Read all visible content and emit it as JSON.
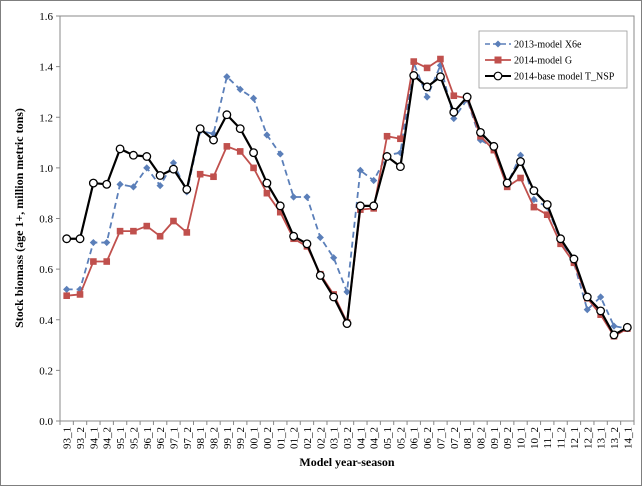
{
  "chart_data": {
    "type": "line",
    "title": "",
    "xlabel": "Model year-season",
    "ylabel": "Stock biomass (age 1+, million metric tons)",
    "ylim": [
      0,
      1.6
    ],
    "yticks": [
      "0.0",
      "0.2",
      "0.4",
      "0.6",
      "0.8",
      "1.0",
      "1.2",
      "1.4",
      "1.6"
    ],
    "grid": "horizontal-off",
    "legend_position": "top-right",
    "categories": [
      "93_1",
      "93_2",
      "94_1",
      "94_2",
      "95_1",
      "95_2",
      "96_1",
      "96_2",
      "97_1",
      "97_2",
      "98_1",
      "98_2",
      "99_1",
      "99_2",
      "00_1",
      "00_2",
      "01_1",
      "01_2",
      "02_1",
      "02_2",
      "03_1",
      "03_2",
      "04_1",
      "04_2",
      "05_1",
      "05_2",
      "06_1",
      "06_2",
      "07_1",
      "07_2",
      "08_1",
      "08_2",
      "09_1",
      "09_2",
      "10_1",
      "10_2",
      "11_1",
      "11_2",
      "12_1",
      "12_2",
      "13_1",
      "13_2",
      "14_1"
    ],
    "series": [
      {
        "name": "2013-model X6e",
        "color": "#5b7fb9",
        "style": "dashed",
        "marker": "diamond",
        "values": [
          0.52,
          0.52,
          0.705,
          0.705,
          0.935,
          0.925,
          1.0,
          0.93,
          1.02,
          0.905,
          1.145,
          1.135,
          1.36,
          1.31,
          1.275,
          1.13,
          1.055,
          0.885,
          0.885,
          0.725,
          0.645,
          0.51,
          0.99,
          0.95,
          1.05,
          1.06,
          1.415,
          1.28,
          1.405,
          1.195,
          1.27,
          1.11,
          1.08,
          0.935,
          1.05,
          0.875,
          0.845,
          0.715,
          0.625,
          0.44,
          0.49,
          0.375,
          0.365
        ]
      },
      {
        "name": "2014-model G",
        "color": "#c0504d",
        "style": "solid",
        "marker": "square",
        "values": [
          0.495,
          0.5,
          0.63,
          0.63,
          0.75,
          0.75,
          0.77,
          0.73,
          0.79,
          0.745,
          0.975,
          0.965,
          1.085,
          1.065,
          1.0,
          0.9,
          0.825,
          0.72,
          0.69,
          0.58,
          0.5,
          0.39,
          0.835,
          0.84,
          1.125,
          1.115,
          1.42,
          1.395,
          1.43,
          1.285,
          1.275,
          1.125,
          1.07,
          0.925,
          0.96,
          0.845,
          0.815,
          0.7,
          0.625,
          0.485,
          0.42,
          0.335,
          0.365
        ]
      },
      {
        "name": "2014-base model T_NSP",
        "color": "#000000",
        "style": "solid",
        "marker": "circle-open",
        "values": [
          0.72,
          0.72,
          0.94,
          0.935,
          1.075,
          1.05,
          1.045,
          0.97,
          0.995,
          0.915,
          1.155,
          1.11,
          1.21,
          1.155,
          1.06,
          0.94,
          0.85,
          0.73,
          0.7,
          0.575,
          0.49,
          0.385,
          0.85,
          0.85,
          1.045,
          1.005,
          1.365,
          1.32,
          1.36,
          1.22,
          1.28,
          1.14,
          1.085,
          0.94,
          1.025,
          0.91,
          0.855,
          0.72,
          0.64,
          0.49,
          0.435,
          0.34,
          0.37
        ]
      }
    ]
  }
}
